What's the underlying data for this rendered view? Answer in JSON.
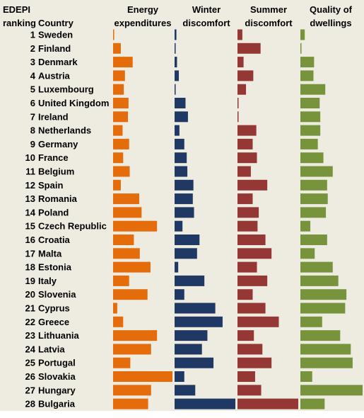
{
  "headers": {
    "ranking_line1": "EDEPI",
    "ranking_line2": "ranking",
    "country": "Country",
    "energy_line1": "Energy",
    "energy_line2": "expenditures",
    "winter_line1": "Winter",
    "winter_line2": "discomfort",
    "summer_line1": "Summer",
    "summer_line2": "discomfort",
    "quality_line1": "Quality of",
    "quality_line2": "dwellings"
  },
  "colors": {
    "energy": "#e46c0a",
    "winter": "#1f3864",
    "summer": "#953735",
    "quality": "#77933c",
    "background": "#eeece1"
  },
  "chart_data": {
    "type": "bar",
    "orientation": "horizontal",
    "panels": 4,
    "grid": false,
    "legend": "none",
    "ranks": [
      1,
      2,
      3,
      4,
      5,
      6,
      7,
      8,
      9,
      10,
      11,
      12,
      13,
      14,
      15,
      16,
      17,
      18,
      19,
      20,
      21,
      22,
      23,
      24,
      25,
      26,
      27,
      28
    ],
    "categories": [
      "Sweden",
      "Finland",
      "Denmark",
      "Austria",
      "Luxembourg",
      "United Kingdom",
      "Ireland",
      "Netherlands",
      "Germany",
      "France",
      "Belgium",
      "Spain",
      "Romania",
      "Poland",
      "Czech Republic",
      "Croatia",
      "Malta",
      "Estonia",
      "Italy",
      "Slovenia",
      "Cyprus",
      "Greece",
      "Lithuania",
      "Latvia",
      "Portugal",
      "Slovakia",
      "Hungary",
      "Bulgaria"
    ],
    "series": [
      {
        "name": "Energy expenditures",
        "values": [
          0.0,
          0.13,
          0.33,
          0.2,
          0.18,
          0.26,
          0.25,
          0.16,
          0.27,
          0.17,
          0.28,
          0.13,
          0.44,
          0.48,
          0.74,
          0.35,
          0.45,
          0.63,
          0.27,
          0.58,
          0.07,
          0.17,
          0.74,
          0.64,
          0.29,
          1.0,
          0.64,
          0.59
        ]
      },
      {
        "name": "Winter discomfort",
        "values": [
          0.03,
          0.01,
          0.04,
          0.07,
          0.0,
          0.18,
          0.22,
          0.08,
          0.16,
          0.2,
          0.21,
          0.31,
          0.3,
          0.32,
          0.13,
          0.41,
          0.37,
          0.06,
          0.49,
          0.16,
          0.67,
          0.79,
          0.54,
          0.45,
          0.64,
          0.16,
          0.34,
          1.0
        ]
      },
      {
        "name": "Summer discomfort",
        "values": [
          0.08,
          0.38,
          0.1,
          0.26,
          0.14,
          0.0,
          0.0,
          0.31,
          0.25,
          0.32,
          0.22,
          0.49,
          0.25,
          0.35,
          0.33,
          0.46,
          0.56,
          0.32,
          0.49,
          0.25,
          0.46,
          0.68,
          0.27,
          0.41,
          0.56,
          0.29,
          0.39,
          1.0
        ]
      },
      {
        "name": "Quality of dwellings",
        "values": [
          0.07,
          0.0,
          0.22,
          0.21,
          0.4,
          0.31,
          0.32,
          0.32,
          0.28,
          0.37,
          0.52,
          0.43,
          0.44,
          0.41,
          0.16,
          0.43,
          0.23,
          0.52,
          0.61,
          0.74,
          0.72,
          0.35,
          0.64,
          0.81,
          0.84,
          0.19,
          1.0,
          0.39
        ]
      }
    ]
  }
}
